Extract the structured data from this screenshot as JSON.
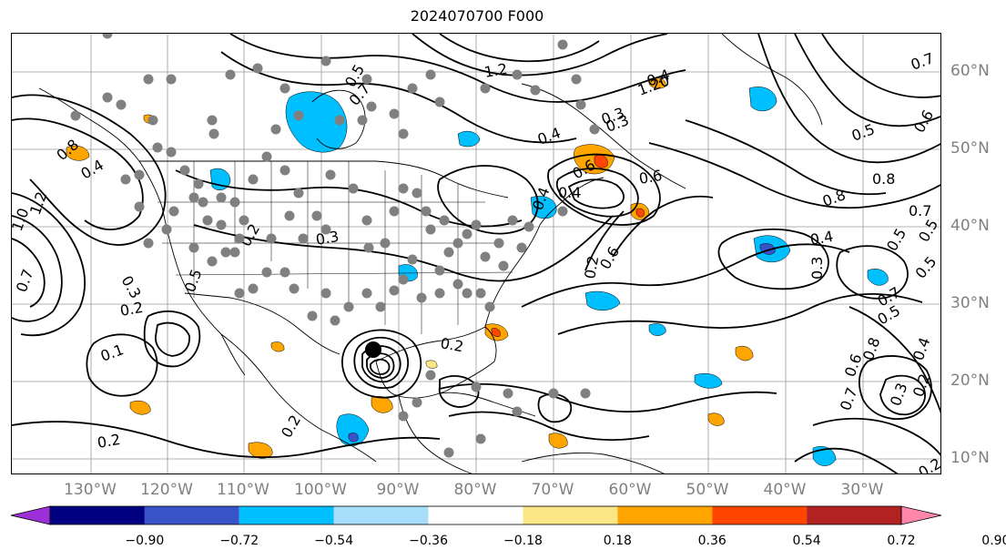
{
  "title": "2024070700 F000",
  "longitude_labels": [
    "130°W",
    "120°W",
    "110°W",
    "100°W",
    "90°W",
    "80°W",
    "70°W",
    "60°W",
    "50°W",
    "40°W",
    "30°W"
  ],
  "latitude_labels": [
    "60°N",
    "50°N",
    "40°N",
    "30°N",
    "20°N",
    "10°N"
  ],
  "colorbar": {
    "tick_labels": [
      "−0.90",
      "−0.72",
      "−0.54",
      "−0.36",
      "−0.18",
      "0.18",
      "0.36",
      "0.54",
      "0.72",
      "0.90"
    ],
    "colors": [
      "#9b30d9",
      "#000080",
      "#3a53c8",
      "#00bfff",
      "#a8defa",
      "#ffffff",
      "#fbe686",
      "#ffa500",
      "#ff4500",
      "#b22222",
      "#ff88aa"
    ]
  },
  "contour_labels": [
    "0.5",
    "0.7",
    "1.2",
    "1.20",
    "0.4",
    "0.3",
    "0.6",
    "0.8",
    "0.5",
    "0.7",
    "0.4",
    "0.3",
    "0.5",
    "0.7",
    "0.5",
    "0.8",
    "0.6",
    "0.4",
    "0.2",
    "0.2",
    "0.6",
    "0.3",
    "0.4",
    "0.3",
    "0.4",
    "0.2",
    "0.8",
    "1.2",
    "1.0",
    "0.7",
    "0.3",
    "0.2",
    "0.5",
    "0.2",
    "0.1",
    "0.4",
    "0.2",
    "0.2",
    "0.4",
    "0.6",
    "0.5",
    "0.7",
    "0.8",
    "0.2",
    "0.7",
    "0.3",
    "0.5",
    "0.6"
  ],
  "colors": {
    "land_outline": "#000000",
    "grid": "#808080",
    "station_dot": "#808080",
    "storm_center": "#000000"
  },
  "icons": {
    "storm": "hurricane-center-marker"
  }
}
